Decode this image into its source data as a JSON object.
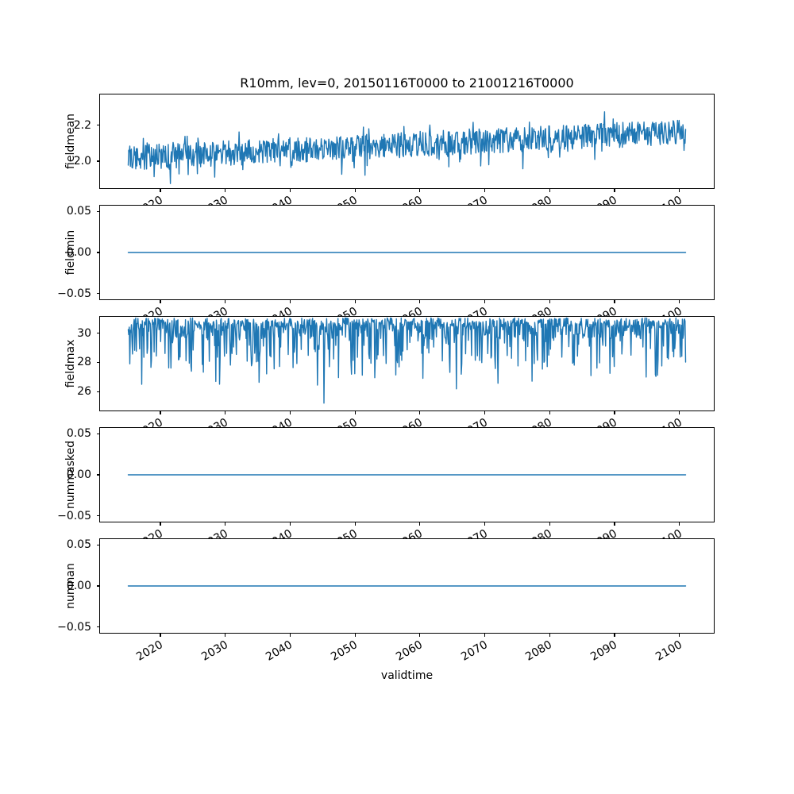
{
  "figure": {
    "title": "R10mm, lev=0, 20150116T0000 to 21001216T0000",
    "xlabel": "validtime",
    "line_color": "#1f77b4",
    "background": "#ffffff",
    "xlim": [
      2010.7,
      2105.3
    ],
    "xticks": [
      2020,
      2030,
      2040,
      2050,
      2060,
      2070,
      2080,
      2090,
      2100
    ],
    "xtick_labels": [
      "2020",
      "2030",
      "2040",
      "2050",
      "2060",
      "2070",
      "2080",
      "2090",
      "2100"
    ]
  },
  "chart_data": [
    {
      "type": "line",
      "ylabel": "fieldmean",
      "ylim": [
        1.85,
        2.37
      ],
      "yticks": [
        2.2,
        2.0
      ],
      "ytick_labels": [
        "2.2",
        "2.0"
      ],
      "x_range": [
        2015.04,
        2100.96
      ],
      "description": "Monthly field mean of R10mm, noisy oscillation between about 1.88 and 2.35, mean rising from about 2.02 in 2015 to about 2.17 by 2100",
      "series": {
        "generator": {
          "kind": "noisy-trend",
          "seed": 20150116,
          "x_start": 2015.04,
          "x_end": 2100.96,
          "points_per_year": 12,
          "base": 2.02,
          "trend_per_year": 0.00165,
          "noise": 0.07,
          "clamp": [
            1.87,
            2.36
          ]
        }
      }
    },
    {
      "type": "line",
      "ylabel": "fieldmin",
      "ylim": [
        -0.057,
        0.057
      ],
      "yticks": [
        0.05,
        0.0,
        -0.05
      ],
      "ytick_labels": [
        "0.05",
        "0.00",
        "−0.05"
      ],
      "x_range": [
        2015.04,
        2100.96
      ],
      "description": "Field minimum is constant zero for the whole period 2015-2100",
      "series": {
        "generator": {
          "kind": "flat",
          "x_start": 2015.04,
          "x_end": 2100.96,
          "value": 0
        }
      }
    },
    {
      "type": "line",
      "ylabel": "fieldmax",
      "ylim": [
        24.7,
        31.12
      ],
      "yticks": [
        30,
        28,
        26
      ],
      "ytick_labels": [
        "30",
        "28",
        "26"
      ],
      "x_range": [
        2015.04,
        2100.96
      ],
      "description": "Field maximum mostly saturated near 30.4-31.0 with frequent dips to 28-30, occasional dips to 26-27, and one deep minimum of about 25.2 near 2045",
      "notable_minimum": {
        "x": 2045.2,
        "y": 25.2
      },
      "series": {
        "generator": {
          "kind": "plateau-dips",
          "seed": 19790101,
          "x_start": 2015.04,
          "x_end": 2100.96,
          "points_per_year": 12,
          "dip": [
            2045.2,
            25.2
          ]
        }
      }
    },
    {
      "type": "line",
      "ylabel": "nummasked",
      "ylim": [
        -0.057,
        0.057
      ],
      "yticks": [
        0.05,
        0.0,
        -0.05
      ],
      "ytick_labels": [
        "0.05",
        "0.00",
        "−0.05"
      ],
      "x_range": [
        2015.04,
        2100.96
      ],
      "description": "Number of masked points is constant zero for the whole period 2015-2100",
      "series": {
        "generator": {
          "kind": "flat",
          "x_start": 2015.04,
          "x_end": 2100.96,
          "value": 0
        }
      }
    },
    {
      "type": "line",
      "ylabel": "numnan",
      "ylim": [
        -0.057,
        0.057
      ],
      "yticks": [
        0.05,
        0.0,
        -0.05
      ],
      "ytick_labels": [
        "0.05",
        "0.00",
        "−0.05"
      ],
      "x_range": [
        2015.04,
        2100.96
      ],
      "description": "Number of NaN points is constant zero for the whole period 2015-2100",
      "series": {
        "generator": {
          "kind": "flat",
          "x_start": 2015.04,
          "x_end": 2100.96,
          "value": 0
        }
      }
    }
  ]
}
